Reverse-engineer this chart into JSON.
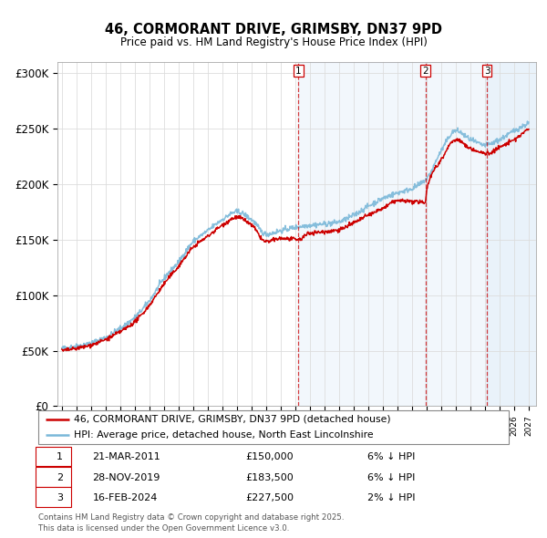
{
  "title": "46, CORMORANT DRIVE, GRIMSBY, DN37 9PD",
  "subtitle": "Price paid vs. HM Land Registry's House Price Index (HPI)",
  "legend_line1": "46, CORMORANT DRIVE, GRIMSBY, DN37 9PD (detached house)",
  "legend_line2": "HPI: Average price, detached house, North East Lincolnshire",
  "footnote": "Contains HM Land Registry data © Crown copyright and database right 2025.\nThis data is licensed under the Open Government Licence v3.0.",
  "sale_dates_decimal": [
    2011.219,
    2019.91,
    2024.128
  ],
  "sale_labels": [
    "1",
    "2",
    "3"
  ],
  "sale_notes": [
    "21-MAR-2011",
    "28-NOV-2019",
    "16-FEB-2024"
  ],
  "sale_amounts": [
    "£150,000",
    "£183,500",
    "£227,500"
  ],
  "sale_pct": [
    "6% ↓ HPI",
    "6% ↓ HPI",
    "2% ↓ HPI"
  ],
  "hpi_color": "#7ab8d9",
  "price_color": "#cc0000",
  "vline_color": "#cc0000",
  "grid_color": "#dddddd",
  "background_color": "#ffffff",
  "ylim": [
    0,
    310000
  ],
  "yticks": [
    0,
    50000,
    100000,
    150000,
    200000,
    250000,
    300000
  ],
  "ytick_labels": [
    "£0",
    "£50K",
    "£100K",
    "£150K",
    "£200K",
    "£250K",
    "£300K"
  ],
  "xstart": 1994.7,
  "xend": 2027.5
}
